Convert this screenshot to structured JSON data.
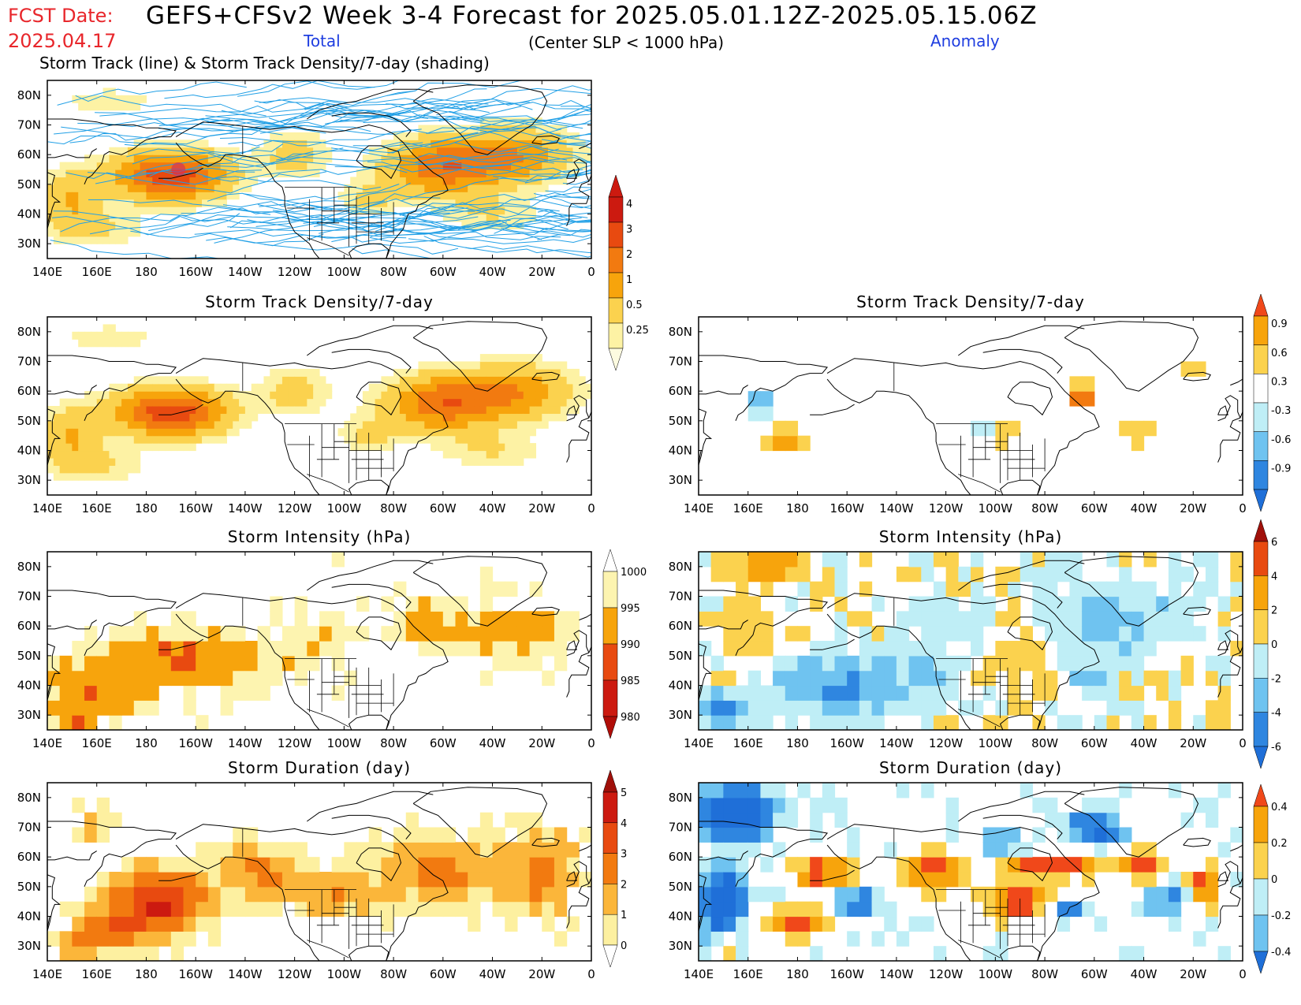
{
  "header": {
    "fcst_label": "FCST Date:",
    "fcst_date": "2025.04.17",
    "title": "GEFS+CFSv2 Week 3-4 Forecast for 2025.05.01.12Z-2025.05.15.06Z",
    "total_label": "Total",
    "anomaly_label": "Anomaly",
    "slp_note": "(Center SLP < 1000 hPa)",
    "top_subtitle": "Storm Track (line) & Storm Track Density/7-day (shading)"
  },
  "axes": {
    "lon_labels": [
      "140E",
      "160E",
      "180",
      "160W",
      "140W",
      "120W",
      "100W",
      "80W",
      "60W",
      "40W",
      "20W",
      "0"
    ],
    "lat_labels": [
      "80N",
      "70N",
      "60N",
      "50N",
      "40N",
      "30N"
    ]
  },
  "panels": [
    {
      "id": "track",
      "title": "",
      "kind": "total",
      "field": "density",
      "tracks": true
    },
    {
      "id": "density_total",
      "title": "Storm Track Density/7-day",
      "kind": "total",
      "field": "density"
    },
    {
      "id": "density_anom",
      "title": "Storm Track Density/7-day",
      "kind": "anom",
      "field": "density_anom"
    },
    {
      "id": "intensity_total",
      "title": "Storm Intensity (hPa)",
      "kind": "total",
      "field": "intensity"
    },
    {
      "id": "intensity_anom",
      "title": "Storm Intensity (hPa)",
      "kind": "anom",
      "field": "intensity_anom"
    },
    {
      "id": "duration_total",
      "title": "Storm Duration (day)",
      "kind": "total",
      "field": "duration"
    },
    {
      "id": "duration_anom",
      "title": "Storm Duration (day)",
      "kind": "anom",
      "field": "duration_anom"
    }
  ],
  "colorbars": [
    {
      "id": "cb_density",
      "labels": [
        "4",
        "3",
        "2",
        "1",
        "0.5",
        "0.25"
      ],
      "colors": [
        "#cc1a10",
        "#e84a10",
        "#f27a10",
        "#f7a40c",
        "#fbd24e",
        "#fdf2a4"
      ],
      "arrow_top": "#cc1a10",
      "arrow_bottom": "#fdfbe0"
    },
    {
      "id": "cb_density_anom",
      "labels": [
        "0.9",
        "0.6",
        "0.3",
        "-0.3",
        "-0.6",
        "-0.9"
      ],
      "colors": [
        "#f7a40c",
        "#fbd24e",
        "#ffffff",
        "#bfeef6",
        "#6fc3f0",
        "#2f86e0"
      ],
      "arrow_top": "#f0481a",
      "arrow_bottom": "#1f6fd8"
    },
    {
      "id": "cb_intensity",
      "labels": [
        "1000",
        "995",
        "990",
        "985",
        "980"
      ],
      "colors": [
        "#fdf4b0",
        "#f7a40c",
        "#e84a10",
        "#cc1a10"
      ],
      "arrow_top": "#ffffff",
      "arrow_bottom": "#b00d08"
    },
    {
      "id": "cb_intensity_anom",
      "labels": [
        "6",
        "4",
        "2",
        "0",
        "-2",
        "-4",
        "-6"
      ],
      "colors": [
        "#e84a10",
        "#f7a40c",
        "#fbd24e",
        "#bfeef6",
        "#6fc3f0",
        "#2f86e0"
      ],
      "arrow_top": "#a0100a",
      "arrow_bottom": "#1f6fd8"
    },
    {
      "id": "cb_duration",
      "labels": [
        "5",
        "4",
        "3",
        "2",
        "1",
        "0"
      ],
      "colors": [
        "#cc1a10",
        "#e84a10",
        "#f27a10",
        "#fbb63a",
        "#fdf0a0"
      ],
      "arrow_top": "#a0100a",
      "arrow_bottom": "#ffffff"
    },
    {
      "id": "cb_duration_anom",
      "labels": [
        "0.4",
        "0.2",
        "0",
        "-0.2",
        "-0.4"
      ],
      "colors": [
        "#f7a40c",
        "#fbd24e",
        "#bfeef6",
        "#6fc3f0"
      ],
      "arrow_top": "#f0481a",
      "arrow_bottom": "#1f6fd8"
    }
  ],
  "colors": {
    "track_line": "#22a0e6",
    "coast": "#000000"
  }
}
